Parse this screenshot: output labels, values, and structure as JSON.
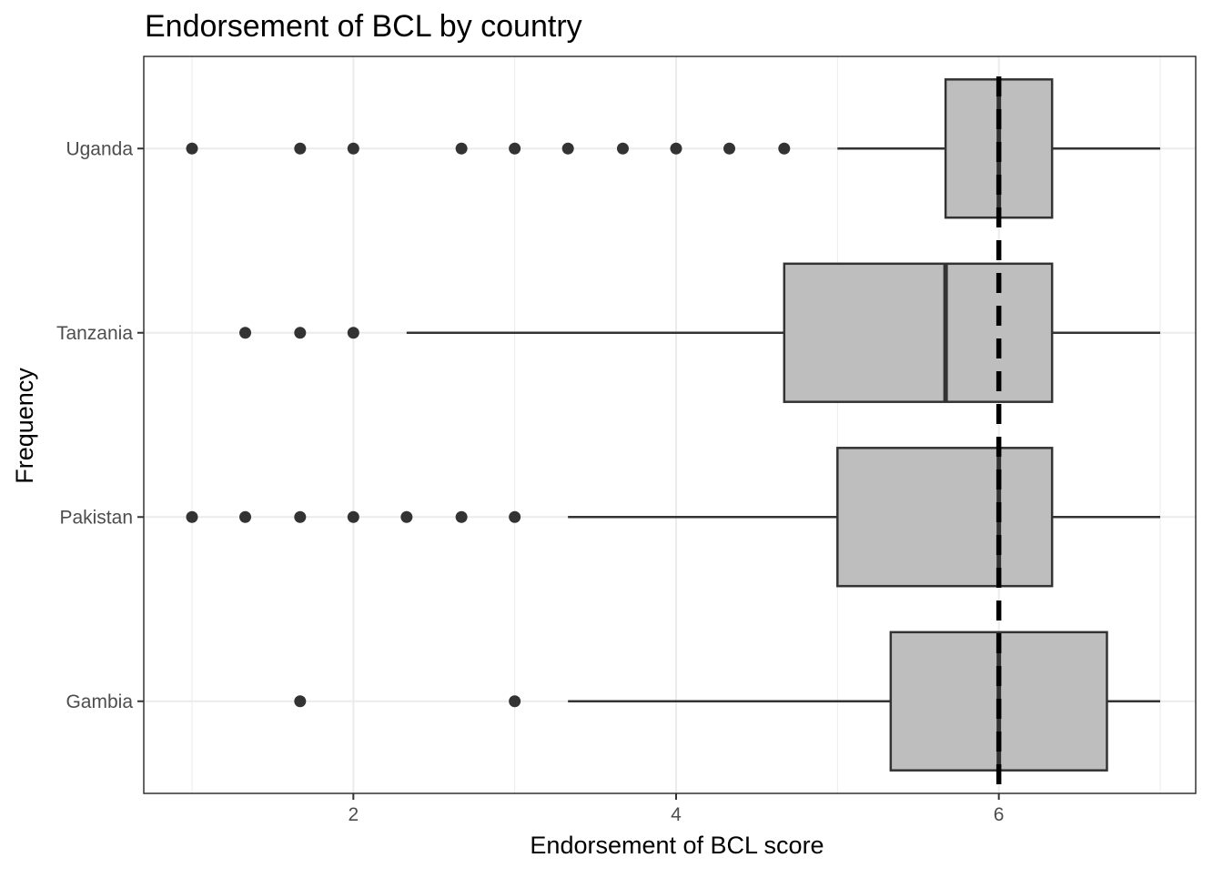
{
  "chart_data": {
    "type": "boxplot",
    "title": "Endorsement of BCL by country",
    "xlabel": "Endorsement of BCL score",
    "ylabel": "Frequency",
    "xlim": [
      0.7,
      7.2
    ],
    "x_ticks": [
      2,
      4,
      6
    ],
    "x_tick_labels": [
      "2",
      "4",
      "6"
    ],
    "orientation": "horizontal",
    "grid": true,
    "reference_line": {
      "x": 6,
      "style": "dashed",
      "color": "#000000"
    },
    "box_fill": "#bebebe",
    "box_stroke": "#333333",
    "categories": [
      "Gambia",
      "Pakistan",
      "Tanzania",
      "Uganda"
    ],
    "boxes": [
      {
        "category": "Gambia",
        "whisker_low": 3.33,
        "q1": 5.33,
        "median": 6.0,
        "q3": 6.67,
        "whisker_high": 7.0,
        "outliers": [
          1.67,
          3.0
        ]
      },
      {
        "category": "Pakistan",
        "whisker_low": 3.33,
        "q1": 5.0,
        "median": 6.0,
        "q3": 6.33,
        "whisker_high": 7.0,
        "outliers": [
          1.0,
          1.33,
          1.67,
          2.0,
          2.33,
          2.67,
          3.0
        ]
      },
      {
        "category": "Tanzania",
        "whisker_low": 2.33,
        "q1": 4.67,
        "median": 5.67,
        "q3": 6.33,
        "whisker_high": 7.0,
        "outliers": [
          1.33,
          1.67,
          2.0
        ]
      },
      {
        "category": "Uganda",
        "whisker_low": 5.0,
        "q1": 5.67,
        "median": 6.0,
        "q3": 6.33,
        "whisker_high": 7.0,
        "outliers": [
          1.0,
          1.67,
          2.0,
          2.67,
          3.0,
          3.33,
          3.67,
          4.0,
          4.33,
          4.67
        ]
      }
    ]
  }
}
